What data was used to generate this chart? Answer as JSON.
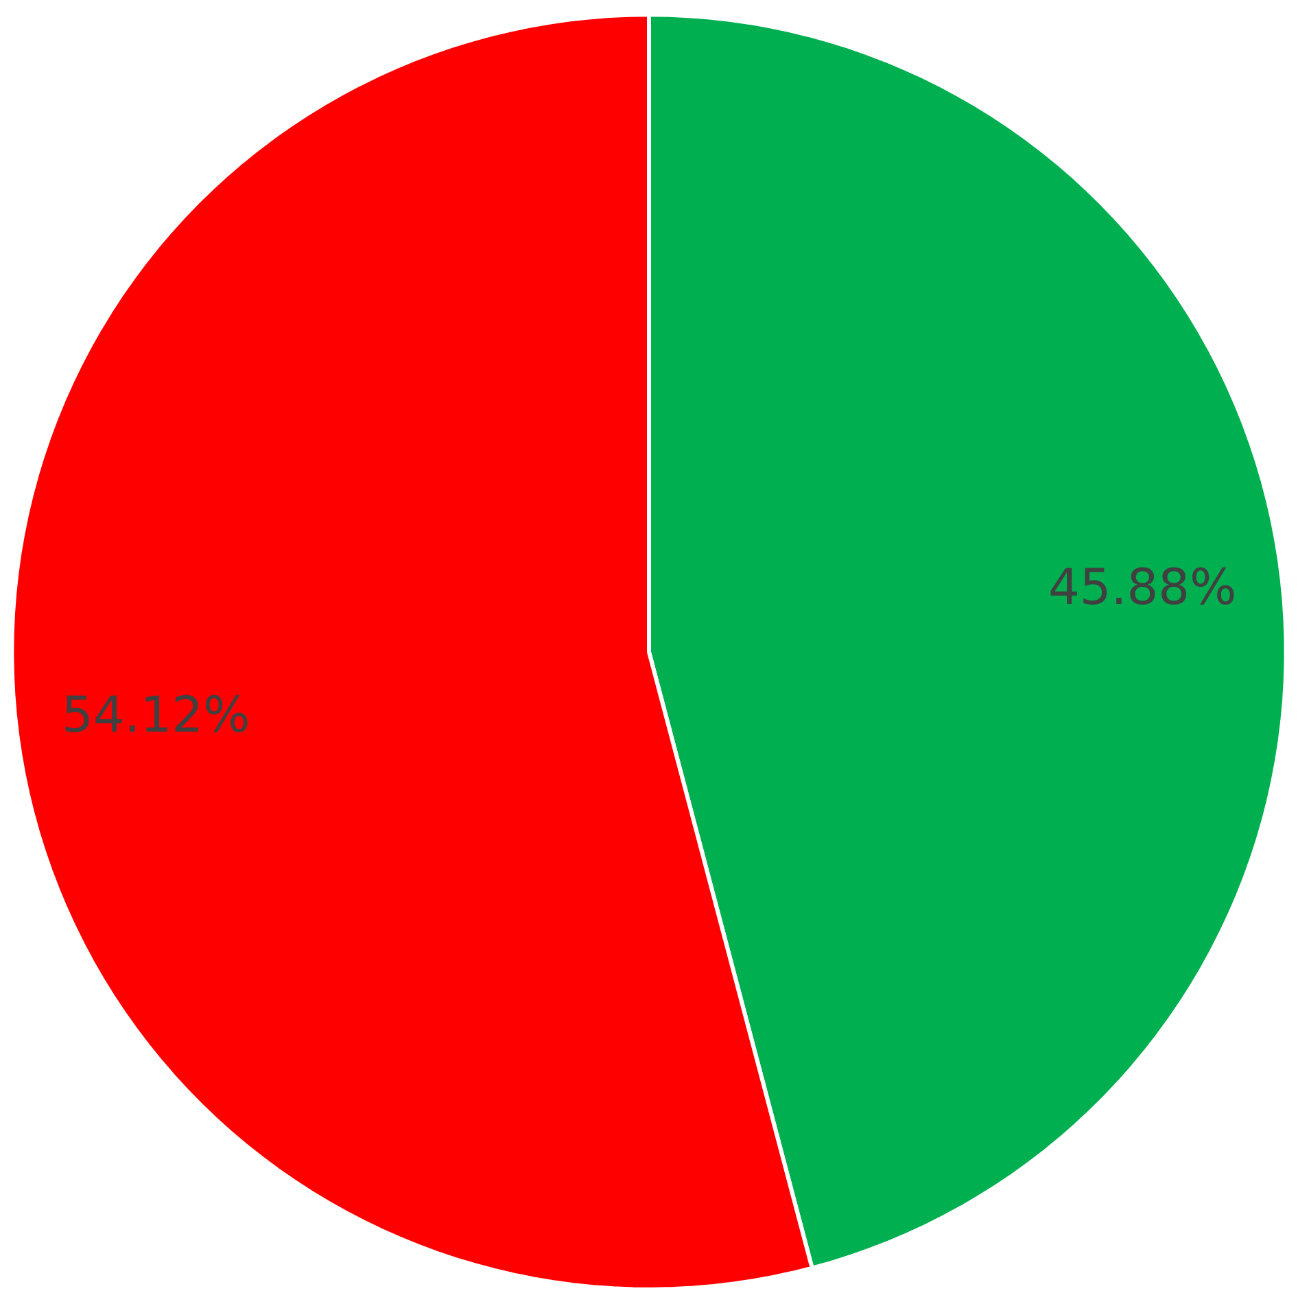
{
  "chart_data": {
    "type": "pie",
    "categories": [
      null,
      null
    ],
    "values": [
      45.88,
      54.12
    ],
    "colors": [
      "#00b050",
      "#ff0000"
    ],
    "value_labels": [
      "45.88%",
      "54.12%"
    ],
    "legend": false
  }
}
